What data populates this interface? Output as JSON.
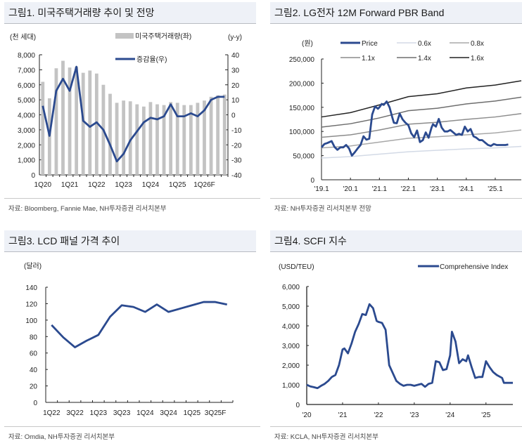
{
  "panels": [
    {
      "title": "그림1. 미국주택거래량 추이 및 전망",
      "source": "자료: Bloomberg, Fannie Mae, NH투자증권 리서치본부"
    },
    {
      "title": "그림2. LG전자 12M Forward PBR Band",
      "source": "자료: NH투자증권 리서치본부 전망"
    },
    {
      "title": "그림3. LCD 패널 가격 추이",
      "source": "자료: Omdia, NH투자증권 리서치본부"
    },
    {
      "title": "그림4. SCFI 지수",
      "source": "자료: KCLA, NH투자증권 리서치본부"
    }
  ],
  "colors": {
    "line": "#2b4a8f",
    "bar": "#c3c3c3",
    "header_bg": "#eef1f7"
  },
  "chart_data": [
    {
      "type": "bar+line",
      "title": "그림1. 미국주택거래량 추이 및 전망",
      "ylabel_left": "(천 세대)",
      "ylabel_right": "(y-y)",
      "ylim_left": [
        0,
        8000
      ],
      "ylim_right": [
        -40,
        40
      ],
      "yticks_left": [
        "0",
        "1,000",
        "2,000",
        "3,000",
        "4,000",
        "5,000",
        "6,000",
        "7,000",
        "8,000"
      ],
      "yticks_right": [
        "-40",
        "-30",
        "-20",
        "-10",
        "0",
        "10",
        "20",
        "30",
        "40"
      ],
      "xtick_labels": [
        "1Q20",
        "1Q21",
        "1Q22",
        "1Q23",
        "1Q24",
        "1Q25",
        "1Q26F"
      ],
      "categories": [
        "1Q20",
        "2Q20",
        "3Q20",
        "4Q20",
        "1Q21",
        "2Q21",
        "3Q21",
        "4Q21",
        "1Q22",
        "2Q22",
        "3Q22",
        "4Q22",
        "1Q23",
        "2Q23",
        "3Q23",
        "4Q23",
        "1Q24",
        "2Q24",
        "3Q24",
        "4Q24",
        "1Q25",
        "2Q25",
        "3Q25",
        "4Q25",
        "1Q26F",
        "2Q26F",
        "3Q26F",
        "4Q26F"
      ],
      "legend": [
        "미국주택거래량(좌)",
        "증감율(우)"
      ],
      "series": [
        {
          "name": "미국주택거래량(좌)",
          "type": "bar",
          "values": [
            6200,
            5100,
            7100,
            7600,
            7150,
            7200,
            6800,
            6950,
            6750,
            6000,
            5400,
            4800,
            4950,
            4900,
            4700,
            4550,
            4850,
            4700,
            4650,
            4850,
            4800,
            4650,
            4650,
            4800,
            4950,
            5200,
            5300,
            5350
          ]
        },
        {
          "name": "증감율(우)",
          "type": "line",
          "values": [
            6,
            -14,
            16,
            24,
            16,
            32,
            -4,
            -8,
            -5,
            -10,
            -20,
            -31,
            -26,
            -17,
            -11,
            -5,
            -2,
            -3,
            -1,
            7,
            -1,
            -1,
            1,
            -1,
            3,
            10,
            12,
            12
          ]
        }
      ]
    },
    {
      "type": "line",
      "title": "그림2. LG전자 12M Forward PBR Band",
      "ylabel": "(원)",
      "ylim": [
        0,
        250000
      ],
      "yticks": [
        "0",
        "50,000",
        "100,000",
        "150,000",
        "200,000",
        "250,000"
      ],
      "xtick_labels": [
        "'19.1",
        "'20.1",
        "'21.1",
        "'22.1",
        "'23.1",
        "'24.1",
        "'25.1"
      ],
      "x_range": [
        2019.0,
        2025.9
      ],
      "legend": [
        "Price",
        "0.6x",
        "0.8x",
        "1.1x",
        "1.4x",
        "1.6x"
      ],
      "series": [
        {
          "name": "Price",
          "x": [
            2019.0,
            2019.1,
            2019.2,
            2019.35,
            2019.45,
            2019.55,
            2019.65,
            2019.75,
            2019.85,
            2019.95,
            2020.05,
            2020.15,
            2020.25,
            2020.35,
            2020.45,
            2020.55,
            2020.65,
            2020.75,
            2020.85,
            2020.95,
            2021.0,
            2021.08,
            2021.15,
            2021.25,
            2021.35,
            2021.45,
            2021.5,
            2021.6,
            2021.7,
            2021.8,
            2021.9,
            2022.0,
            2022.1,
            2022.2,
            2022.3,
            2022.4,
            2022.5,
            2022.6,
            2022.7,
            2022.8,
            2022.85,
            2022.95,
            2023.05,
            2023.15,
            2023.25,
            2023.35,
            2023.45,
            2023.55,
            2023.65,
            2023.75,
            2023.85,
            2023.95,
            2024.05,
            2024.15,
            2024.25,
            2024.35,
            2024.45,
            2024.55,
            2024.65,
            2024.75,
            2024.85,
            2024.95,
            2025.05,
            2025.15,
            2025.25,
            2025.35,
            2025.45
          ],
          "values": [
            67000,
            74000,
            76000,
            80000,
            68000,
            62000,
            67000,
            67000,
            72000,
            65000,
            50000,
            57000,
            65000,
            72000,
            90000,
            83000,
            85000,
            135000,
            152000,
            147000,
            150000,
            157000,
            155000,
            162000,
            150000,
            128000,
            118000,
            117000,
            137000,
            125000,
            118000,
            113000,
            96000,
            88000,
            102000,
            78000,
            82000,
            98000,
            87000,
            108000,
            115000,
            110000,
            126000,
            108000,
            100000,
            100000,
            103000,
            98000,
            93000,
            95000,
            93000,
            110000,
            100000,
            105000,
            90000,
            87000,
            82000,
            82000,
            77000,
            72000,
            70000,
            74000,
            72000,
            72000,
            72000,
            72000,
            73000
          ]
        },
        {
          "name": "0.6x",
          "x": [
            2019.0,
            2020.0,
            2021.0,
            2022.0,
            2023.0,
            2024.0,
            2025.0,
            2025.9
          ],
          "values": [
            45000,
            48000,
            53000,
            58000,
            61000,
            64000,
            66000,
            69000
          ]
        },
        {
          "name": "0.8x",
          "x": [
            2019.0,
            2020.0,
            2021.0,
            2022.0,
            2023.0,
            2024.0,
            2025.0,
            2025.9
          ],
          "values": [
            66000,
            70000,
            78000,
            86000,
            89000,
            93000,
            97000,
            103000
          ]
        },
        {
          "name": "1.1x",
          "x": [
            2019.0,
            2020.0,
            2021.0,
            2022.0,
            2023.0,
            2024.0,
            2025.0,
            2025.9
          ],
          "values": [
            88000,
            93000,
            103000,
            115000,
            119000,
            125000,
            130000,
            137000
          ]
        },
        {
          "name": "1.4x",
          "x": [
            2019.0,
            2020.0,
            2021.0,
            2022.0,
            2023.0,
            2024.0,
            2025.0,
            2025.9
          ],
          "values": [
            109000,
            116000,
            128000,
            143000,
            148000,
            157000,
            163000,
            171000
          ]
        },
        {
          "name": "1.6x",
          "x": [
            2019.0,
            2020.0,
            2021.0,
            2022.0,
            2023.0,
            2024.0,
            2025.0,
            2025.9
          ],
          "values": [
            130000,
            139000,
            155000,
            172000,
            178000,
            190000,
            196000,
            205000
          ]
        }
      ]
    },
    {
      "type": "line",
      "title": "그림3. LCD 패널 가격 추이",
      "ylabel": "(달러)",
      "ylim": [
        0,
        140
      ],
      "yticks": [
        "0",
        "20",
        "40",
        "60",
        "80",
        "100",
        "120",
        "140"
      ],
      "xtick_labels": [
        "1Q22",
        "3Q22",
        "1Q23",
        "3Q23",
        "1Q24",
        "3Q24",
        "1Q25",
        "3Q25F"
      ],
      "categories": [
        "1Q22",
        "2Q22",
        "3Q22",
        "4Q22",
        "1Q23",
        "2Q23",
        "3Q23",
        "4Q23",
        "1Q24",
        "2Q24",
        "3Q24",
        "4Q24",
        "1Q25",
        "2Q25",
        "3Q25F",
        "4Q25F"
      ],
      "series": [
        {
          "name": "LCD 패널 가격",
          "values": [
            94,
            79,
            67,
            75,
            82,
            104,
            118,
            116,
            110,
            119,
            110,
            114,
            118,
            122,
            122,
            119
          ]
        }
      ]
    },
    {
      "type": "line",
      "title": "그림4. SCFI 지수",
      "ylabel": "(USD/TEU)",
      "ylim": [
        0,
        6000
      ],
      "yticks": [
        "0",
        "1,000",
        "2,000",
        "3,000",
        "4,000",
        "5,000",
        "6,000"
      ],
      "xtick_labels": [
        "'20",
        "'21",
        "'22",
        "'23",
        "'24",
        "'25"
      ],
      "x_range": [
        2020.0,
        2025.75
      ],
      "legend": [
        "Comprehensive Index"
      ],
      "series": [
        {
          "name": "Comprehensive Index",
          "x": [
            2020.0,
            2020.1,
            2020.2,
            2020.3,
            2020.4,
            2020.5,
            2020.6,
            2020.7,
            2020.8,
            2020.9,
            2021.0,
            2021.05,
            2021.15,
            2021.25,
            2021.35,
            2021.45,
            2021.55,
            2021.65,
            2021.75,
            2021.85,
            2021.95,
            2022.0,
            2022.1,
            2022.2,
            2022.3,
            2022.4,
            2022.5,
            2022.6,
            2022.7,
            2022.8,
            2022.9,
            2023.0,
            2023.1,
            2023.2,
            2023.3,
            2023.4,
            2023.5,
            2023.6,
            2023.7,
            2023.8,
            2023.9,
            2024.0,
            2024.05,
            2024.15,
            2024.25,
            2024.35,
            2024.45,
            2024.5,
            2024.6,
            2024.7,
            2024.8,
            2024.9,
            2025.0,
            2025.1,
            2025.2,
            2025.3,
            2025.4,
            2025.45,
            2025.5,
            2025.6,
            2025.7,
            2025.75
          ],
          "values": [
            1000,
            920,
            880,
            830,
            950,
            1050,
            1200,
            1400,
            1500,
            2000,
            2800,
            2850,
            2600,
            3100,
            3700,
            4100,
            4600,
            4550,
            5100,
            4900,
            4250,
            4200,
            4150,
            3800,
            2000,
            1600,
            1200,
            1050,
            950,
            1000,
            1000,
            950,
            1000,
            1050,
            900,
            1050,
            1100,
            2200,
            2150,
            1750,
            1800,
            2500,
            3700,
            3200,
            2100,
            2300,
            2200,
            2500,
            1900,
            1350,
            1400,
            1400,
            2200,
            1900,
            1650,
            1500,
            1400,
            1350,
            1100,
            1100,
            1100,
            1100
          ]
        }
      ]
    }
  ],
  "chart_labels": {
    "c1_ylabel_left": "(천 세대)",
    "c1_ylabel_right": "(y-y)",
    "c1_legend_bar": "미국주택거래량(좌)",
    "c1_legend_line": "증감율(우)",
    "c2_ylabel": "(원)",
    "c3_ylabel": "(달러)",
    "c4_ylabel": "(USD/TEU)",
    "c4_legend": "Comprehensive Index"
  }
}
